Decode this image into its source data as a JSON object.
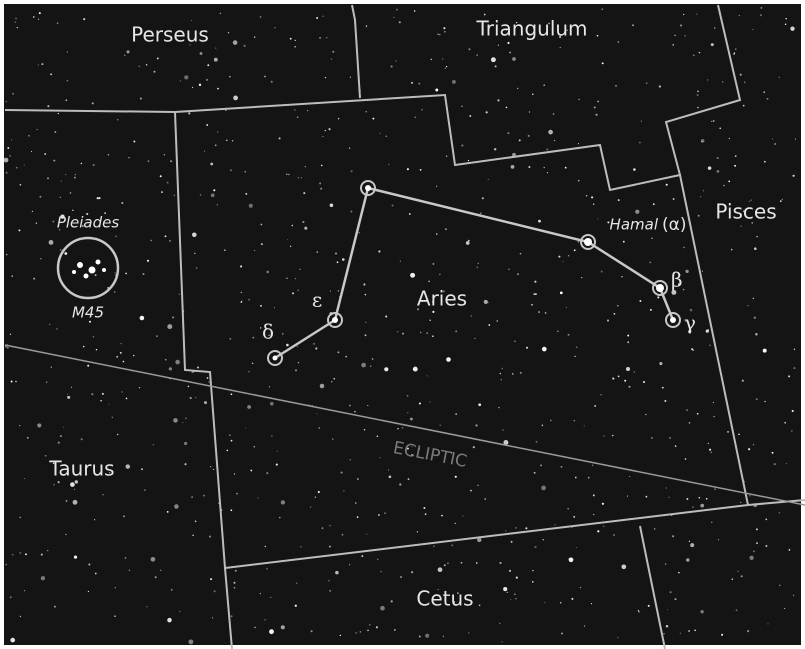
{
  "constellations": [
    "Perseus",
    "Triangulum",
    "Pisces",
    "Aries",
    "Taurus",
    "Cetus"
  ],
  "cluster": {
    "name": "Pleiades",
    "designation": "M45"
  },
  "stars": [
    {
      "name": "Hamal",
      "letter": "(α)"
    },
    {
      "letter": "β"
    },
    {
      "letter": "γ"
    },
    {
      "letter": "δ"
    },
    {
      "letter": "ε"
    }
  ],
  "ecliptic": "ECLIPTIC"
}
